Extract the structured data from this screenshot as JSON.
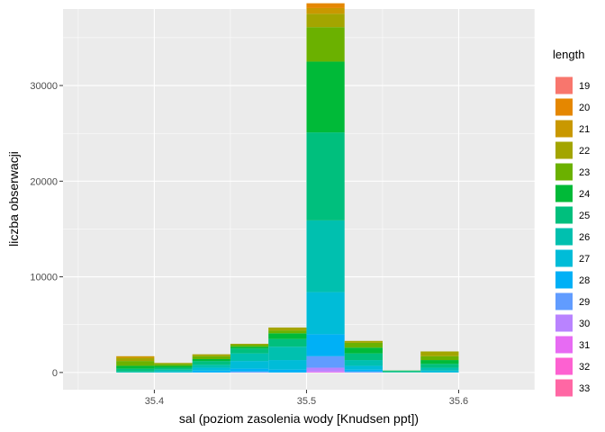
{
  "chart_data": {
    "type": "bar",
    "subtype": "stacked-histogram",
    "xlabel": "sal (poziom zasolenia wody [Knudsen ppt])",
    "ylabel": "liczba obserwacji",
    "xlim": [
      35.34,
      35.65
    ],
    "ylim": [
      -1800,
      38000
    ],
    "x_ticks": [
      35.4,
      35.5,
      35.6
    ],
    "x_tick_labels": [
      "35.4",
      "35.5",
      "35.6"
    ],
    "y_ticks": [
      0,
      10000,
      20000,
      30000
    ],
    "y_tick_labels": [
      "0",
      "10000",
      "20000",
      "30000"
    ],
    "bin_width": 0.025,
    "bin_starts": [
      35.375,
      35.4,
      35.425,
      35.45,
      35.475,
      35.5,
      35.525,
      35.55,
      35.575
    ],
    "legend": {
      "title": "length",
      "placement": "right"
    },
    "series": [
      {
        "name": "19",
        "color": "#F8766D",
        "values": [
          0,
          0,
          0,
          0,
          0,
          0,
          0,
          0,
          0
        ]
      },
      {
        "name": "20",
        "color": "#E58700",
        "values": [
          0,
          0,
          0,
          0,
          0,
          500,
          0,
          0,
          0
        ]
      },
      {
        "name": "21",
        "color": "#C99800",
        "values": [
          200,
          0,
          0,
          0,
          0,
          600,
          0,
          0,
          0
        ]
      },
      {
        "name": "22",
        "color": "#A3A500",
        "values": [
          300,
          100,
          200,
          100,
          300,
          1400,
          200,
          0,
          500
        ]
      },
      {
        "name": "23",
        "color": "#6BB100",
        "values": [
          500,
          200,
          300,
          200,
          300,
          3600,
          500,
          0,
          400
        ]
      },
      {
        "name": "24",
        "color": "#00BA38",
        "values": [
          300,
          200,
          200,
          200,
          600,
          7400,
          600,
          50,
          400
        ]
      },
      {
        "name": "25",
        "color": "#00BF7D",
        "values": [
          300,
          200,
          400,
          500,
          800,
          9200,
          700,
          100,
          400
        ]
      },
      {
        "name": "26",
        "color": "#00C0AF",
        "values": [
          100,
          200,
          300,
          800,
          1400,
          7500,
          600,
          50,
          300
        ]
      },
      {
        "name": "27",
        "color": "#00BCD8",
        "values": [
          0,
          100,
          300,
          800,
          1000,
          4400,
          400,
          0,
          200
        ]
      },
      {
        "name": "28",
        "color": "#00B0F6",
        "values": [
          0,
          0,
          200,
          300,
          300,
          2300,
          200,
          0,
          0
        ]
      },
      {
        "name": "29",
        "color": "#619CFF",
        "values": [
          0,
          0,
          0,
          100,
          0,
          1200,
          100,
          0,
          0
        ]
      },
      {
        "name": "30",
        "color": "#B983FF",
        "values": [
          0,
          0,
          0,
          0,
          0,
          400,
          0,
          0,
          0
        ]
      },
      {
        "name": "31",
        "color": "#E76BF3",
        "values": [
          0,
          0,
          0,
          0,
          0,
          100,
          0,
          0,
          0
        ]
      },
      {
        "name": "32",
        "color": "#FD61D1",
        "values": [
          0,
          0,
          0,
          0,
          0,
          0,
          0,
          0,
          0
        ]
      },
      {
        "name": "33",
        "color": "#FF67A4",
        "values": [
          0,
          0,
          0,
          0,
          0,
          0,
          0,
          0,
          0
        ]
      }
    ],
    "grid": true,
    "panel_background": "#EBEBEB",
    "grid_color": "#FFFFFF"
  }
}
